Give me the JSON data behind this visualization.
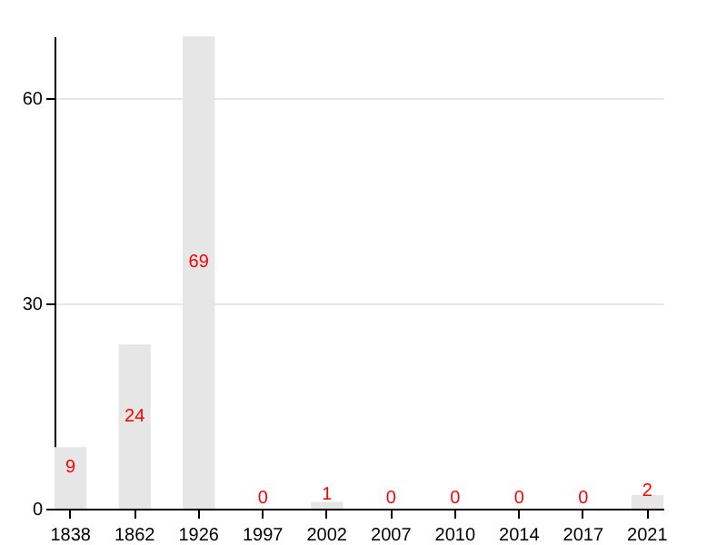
{
  "chart_data": {
    "type": "bar",
    "categories": [
      "1838",
      "1862",
      "1926",
      "1997",
      "2002",
      "2007",
      "2010",
      "2014",
      "2017",
      "2021"
    ],
    "values": [
      9,
      24,
      69,
      0,
      1,
      0,
      0,
      0,
      0,
      2
    ],
    "color": "#e6e6e6",
    "ylim": [
      0,
      69
    ],
    "yticks": [
      0,
      30,
      60
    ],
    "grid": "y",
    "data_labels": true
  }
}
